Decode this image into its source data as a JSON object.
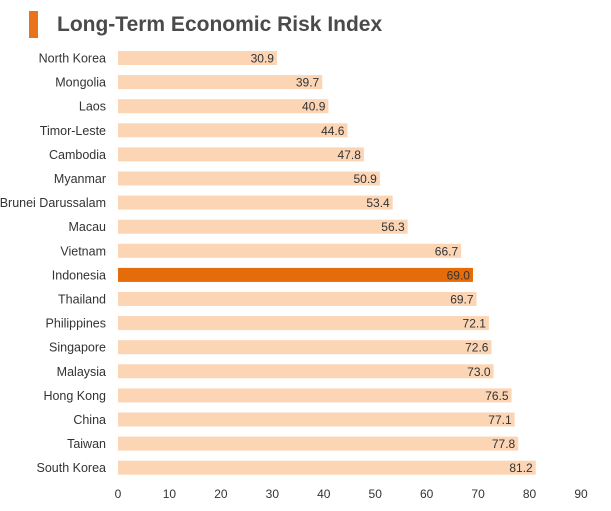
{
  "header": {
    "title": "Long-Term Economic Risk Index"
  },
  "colors": {
    "accent": "#e8731a",
    "bar": "#fcd5b5",
    "highlight": "#e46c0a"
  },
  "chart_data": {
    "type": "bar",
    "orientation": "horizontal",
    "title": "Long-Term Economic Risk Index",
    "categories": [
      "North Korea",
      "Mongolia",
      "Laos",
      "Timor-Leste",
      "Cambodia",
      "Myanmar",
      "Brunei Darussalam",
      "Macau",
      "Vietnam",
      "Indonesia",
      "Thailand",
      "Philippines",
      "Singapore",
      "Malaysia",
      "Hong Kong",
      "China",
      "Taiwan",
      "South Korea"
    ],
    "values": [
      30.9,
      39.7,
      40.9,
      44.6,
      47.8,
      50.9,
      53.4,
      56.3,
      66.7,
      69.0,
      69.7,
      72.1,
      72.6,
      73.0,
      76.5,
      77.1,
      77.8,
      81.2
    ],
    "value_labels": [
      "30.9",
      "39.7",
      "40.9",
      "44.6",
      "47.8",
      "50.9",
      "53.4",
      "56.3",
      "66.7",
      "69.0",
      "69.7",
      "72.1",
      "72.6",
      "73.0",
      "76.5",
      "77.1",
      "77.8",
      "81.2"
    ],
    "highlight": "Indonesia",
    "xlim": [
      0,
      90
    ],
    "xticks": [
      "0",
      "10",
      "20",
      "30",
      "40",
      "50",
      "60",
      "70",
      "80",
      "90"
    ],
    "grid": false,
    "legend": "none"
  }
}
